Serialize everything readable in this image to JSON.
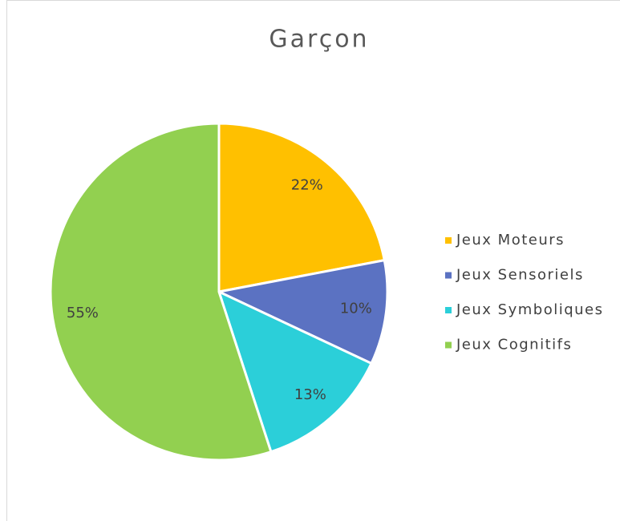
{
  "chart_data": {
    "type": "pie",
    "title": "Garçon",
    "categories": [
      "Jeux Moteurs",
      "Jeux Sensoriels",
      "Jeux Symboliques",
      "Jeux Cognitifs"
    ],
    "values": [
      22,
      10,
      13,
      55
    ],
    "value_labels": [
      "22%",
      "10%",
      "13%",
      "55%"
    ],
    "colors": [
      "#FFC000",
      "#5B72C2",
      "#2BCFD9",
      "#92D050"
    ],
    "legend": "right"
  }
}
